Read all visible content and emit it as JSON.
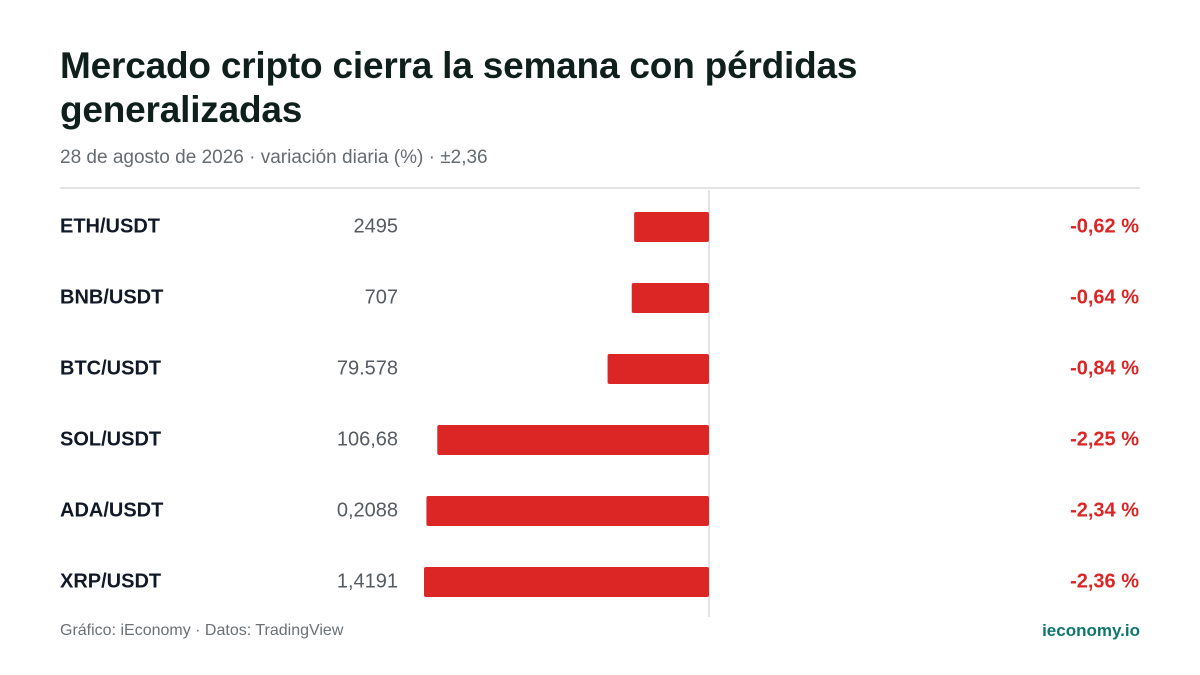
{
  "title": "Mercado cripto cierra la semana con pérdidas generalizadas",
  "subtitle": "28 de agosto de 2026 · variación diaria (%) · ±2,36",
  "footer": {
    "credit": "Gráfico: iEconomy · Datos: TradingView",
    "brand": "ieconomy.io"
  },
  "colors": {
    "negative": "#dc2626",
    "brand": "#0f766e"
  },
  "chart_data": {
    "type": "bar",
    "orientation": "horizontal",
    "scale_max": 2.36,
    "categories": [
      "ETH/USDT",
      "BNB/USDT",
      "BTC/USDT",
      "SOL/USDT",
      "ADA/USDT",
      "XRP/USDT"
    ],
    "prices": [
      "2495",
      "707",
      "79.578",
      "106,68",
      "0,2088",
      "1,4191"
    ],
    "values": [
      -0.62,
      -0.64,
      -0.84,
      -2.25,
      -2.34,
      -2.36
    ],
    "value_labels": [
      "-0,62 %",
      "-0,64 %",
      "-0,84 %",
      "-2,25 %",
      "-2,34 %",
      "-2,36 %"
    ],
    "grid": false
  }
}
